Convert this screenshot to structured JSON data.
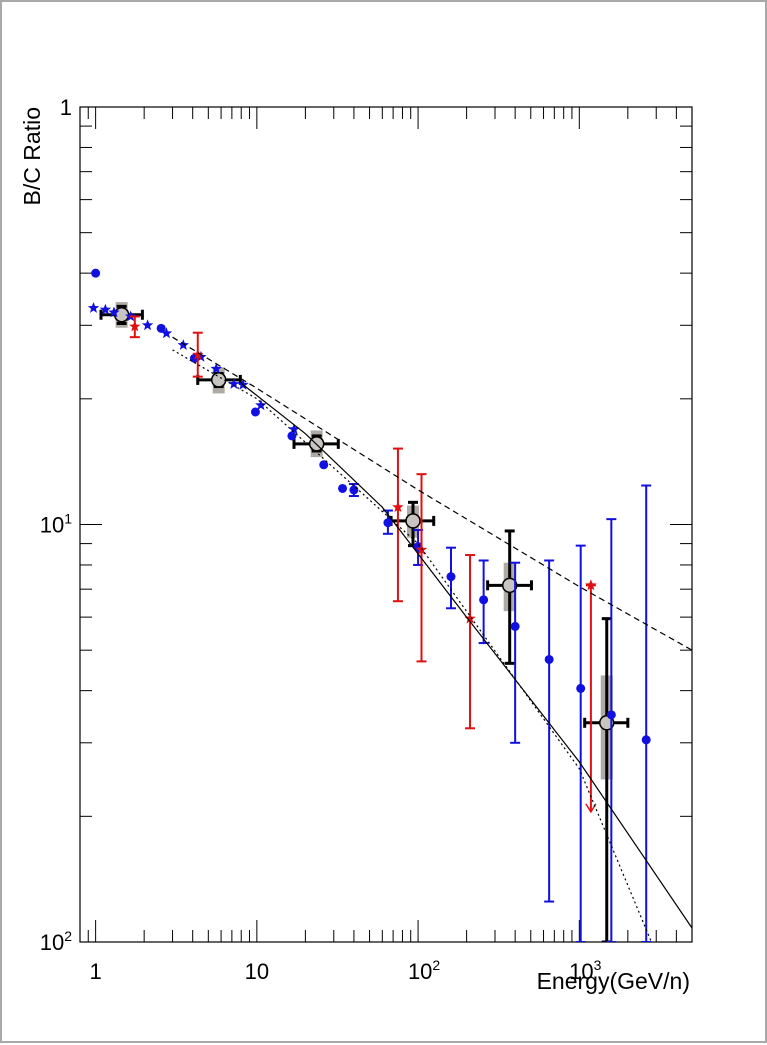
{
  "chart_data": {
    "type": "scatter",
    "title": "",
    "xlabel": "Energy(GeV/n)",
    "ylabel": "B/C Ratio",
    "xscale": "log",
    "yscale": "log",
    "xlim": [
      0.8,
      5000
    ],
    "ylim": [
      0.01,
      1
    ],
    "grid": false,
    "x_tick_labels": [
      {
        "value": 1,
        "base": "1",
        "exp": ""
      },
      {
        "value": 10,
        "base": "10",
        "exp": ""
      },
      {
        "value": 100,
        "base": "10",
        "exp": "2"
      },
      {
        "value": 1000,
        "base": "10",
        "exp": "3"
      }
    ],
    "y_tick_labels": [
      {
        "value": 1,
        "base": "1",
        "exp": ""
      },
      {
        "value": 0.1,
        "base": "10",
        "exp": "1"
      },
      {
        "value": 0.01,
        "base": "10",
        "exp": "2"
      }
    ],
    "series": [
      {
        "marker": "circle-open",
        "color": "#000000",
        "points": [
          {
            "x": 1.45,
            "y": 0.318,
            "xerr": [
              1.08,
              1.95
            ],
            "yerr": [
              0.303,
              0.333
            ],
            "sys": [
              0.296,
              0.341
            ]
          },
          {
            "x": 5.8,
            "y": 0.222,
            "xerr": [
              4.3,
              7.9
            ],
            "yerr": [
              0.214,
              0.23
            ],
            "sys": [
              0.206,
              0.238
            ]
          },
          {
            "x": 23.5,
            "y": 0.156,
            "xerr": [
              17.0,
              32.0
            ],
            "yerr": [
              0.15,
              0.163
            ],
            "sys": [
              0.145,
              0.168
            ]
          },
          {
            "x": 93,
            "y": 0.102,
            "xerr": [
              68,
              125
            ],
            "yerr": [
              0.089,
              0.113
            ],
            "sys": [
              0.093,
              0.111
            ]
          },
          {
            "x": 370,
            "y": 0.0715,
            "xerr": [
              270,
              505
            ],
            "yerr": [
              0.0465,
              0.0965
            ],
            "sys": [
              0.062,
              0.081
            ]
          },
          {
            "x": 1480,
            "y": 0.0335,
            "xerr": [
              1080,
              2000
            ],
            "yerr": [
              0.01,
              0.0595
            ],
            "sys": [
              0.0245,
              0.0435
            ]
          }
        ]
      },
      {
        "marker": "circle",
        "color": "#1010e0",
        "points": [
          {
            "x": 1.0,
            "y": 0.4
          },
          {
            "x": 2.55,
            "y": 0.295
          },
          {
            "x": 4.1,
            "y": 0.25
          },
          {
            "x": 9.8,
            "y": 0.186
          },
          {
            "x": 16.5,
            "y": 0.163
          },
          {
            "x": 26,
            "y": 0.139
          },
          {
            "x": 34,
            "y": 0.122
          },
          {
            "x": 40,
            "y": 0.121,
            "yerr": [
              0.117,
              0.125
            ]
          },
          {
            "x": 65,
            "y": 0.101,
            "yerr": [
              0.095,
              0.108
            ]
          },
          {
            "x": 100,
            "y": 0.0885,
            "yerr": [
              0.08,
              0.097
            ]
          },
          {
            "x": 160,
            "y": 0.075,
            "yerr": [
              0.063,
              0.088
            ]
          },
          {
            "x": 255,
            "y": 0.066,
            "yerr": [
              0.052,
              0.082
            ]
          },
          {
            "x": 400,
            "y": 0.057,
            "yerr": [
              0.03,
              0.081
            ]
          },
          {
            "x": 650,
            "y": 0.0475,
            "yerr": [
              0.0125,
              0.082
            ]
          },
          {
            "x": 1020,
            "y": 0.0405,
            "yerr": [
              0.01,
              0.089
            ]
          },
          {
            "x": 1580,
            "y": 0.035,
            "yerr": [
              0.01,
              0.103
            ]
          },
          {
            "x": 2600,
            "y": 0.0305,
            "yerr": [
              0.01,
              0.124
            ]
          }
        ]
      },
      {
        "marker": "star",
        "color": "#1010e0",
        "points": [
          {
            "x": 0.97,
            "y": 0.33
          },
          {
            "x": 1.15,
            "y": 0.327
          },
          {
            "x": 1.3,
            "y": 0.322
          },
          {
            "x": 1.65,
            "y": 0.315
          },
          {
            "x": 2.1,
            "y": 0.3
          },
          {
            "x": 2.75,
            "y": 0.287
          },
          {
            "x": 3.5,
            "y": 0.269
          },
          {
            "x": 4.5,
            "y": 0.252
          },
          {
            "x": 5.6,
            "y": 0.236
          },
          {
            "x": 7.2,
            "y": 0.217
          },
          {
            "x": 8.2,
            "y": 0.216
          },
          {
            "x": 10.6,
            "y": 0.193
          },
          {
            "x": 17,
            "y": 0.169
          }
        ]
      },
      {
        "marker": "star",
        "color": "#e01010",
        "points": [
          {
            "x": 1.75,
            "y": 0.298,
            "yerr": [
              0.281,
              0.315
            ]
          },
          {
            "x": 4.3,
            "y": 0.255,
            "yerr": [
              0.226,
              0.288
            ]
          },
          {
            "x": 75,
            "y": 0.11,
            "yerr": [
              0.0655,
              0.152
            ]
          },
          {
            "x": 105,
            "y": 0.087,
            "yerr": [
              0.047,
              0.132
            ]
          },
          {
            "x": 210,
            "y": 0.0595,
            "yerr": [
              0.0325,
              0.0845
            ]
          },
          {
            "x": 1180,
            "y": 0.0715,
            "yerr": [
              0.0205,
              0.0715
            ],
            "upper_limit": true
          }
        ]
      },
      {
        "marker": "line",
        "color": "#000000",
        "dash": "solid",
        "points": [
          [
            8,
            0.218
          ],
          [
            20,
            0.165
          ],
          [
            60,
            0.11
          ],
          [
            200,
            0.06
          ],
          [
            1000,
            0.027
          ],
          [
            5000,
            0.0108
          ]
        ]
      },
      {
        "marker": "line",
        "color": "#000000",
        "dash": "dashed",
        "points": [
          [
            3,
            0.281
          ],
          [
            10,
            0.212
          ],
          [
            100,
            0.121
          ],
          [
            1000,
            0.071
          ],
          [
            5000,
            0.05
          ]
        ]
      },
      {
        "marker": "line",
        "color": "#000000",
        "dash": "dotted",
        "points": [
          [
            3,
            0.262
          ],
          [
            10,
            0.2
          ],
          [
            100,
            0.09
          ],
          [
            1000,
            0.026
          ],
          [
            2800,
            0.01
          ]
        ]
      }
    ]
  }
}
